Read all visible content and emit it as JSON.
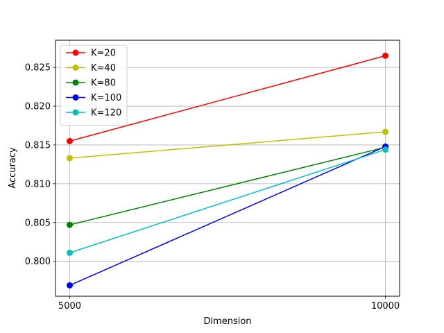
{
  "chart_data": {
    "type": "line",
    "title": "",
    "xlabel": "Dimension",
    "ylabel": "Accuracy",
    "x": [
      5000,
      10000
    ],
    "x_tick_labels": [
      "5000",
      "10000"
    ],
    "ylim": [
      0.7955,
      0.8285
    ],
    "y_ticks": [
      0.8,
      0.805,
      0.81,
      0.815,
      0.82,
      0.825
    ],
    "y_tick_labels": [
      "0.800",
      "0.805",
      "0.810",
      "0.815",
      "0.820",
      "0.825"
    ],
    "grid": true,
    "legend_position": "top-left",
    "series": [
      {
        "name": "K=20",
        "color": "#ff0000",
        "values": [
          0.8155,
          0.8265
        ]
      },
      {
        "name": "K=40",
        "color": "#bfbf00",
        "values": [
          0.8133,
          0.8167
        ]
      },
      {
        "name": "K=80",
        "color": "#008000",
        "values": [
          0.8047,
          0.8147
        ]
      },
      {
        "name": "K=100",
        "color": "#0000ff",
        "values": [
          0.7969,
          0.8148
        ]
      },
      {
        "name": "K=120",
        "color": "#00bfbf",
        "values": [
          0.8011,
          0.8144
        ]
      }
    ]
  }
}
